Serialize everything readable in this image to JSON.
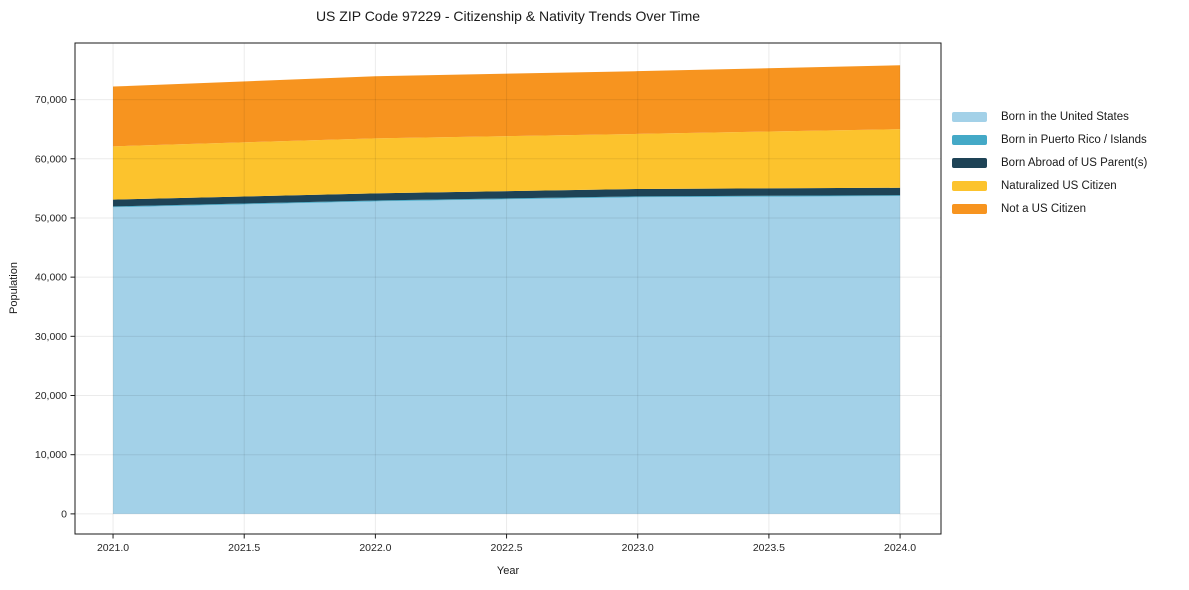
{
  "chart_data": {
    "type": "area",
    "stacked": true,
    "title": "US ZIP Code 97229 - Citizenship & Nativity Trends Over Time",
    "xlabel": "Year",
    "ylabel": "Population",
    "x": [
      2021,
      2022,
      2023,
      2024
    ],
    "series": [
      {
        "name": "Born in the United States",
        "color": "#a3d1e8",
        "values": [
          51800,
          52800,
          53500,
          53700
        ]
      },
      {
        "name": "Born in Puerto Rico / Islands",
        "color": "#44a9c7",
        "values": [
          150,
          150,
          150,
          150
        ]
      },
      {
        "name": "Born Abroad of US Parent(s)",
        "color": "#1e4356",
        "values": [
          1150,
          1200,
          1250,
          1250
        ]
      },
      {
        "name": "Naturalized US Citizen",
        "color": "#fcc32d",
        "values": [
          9000,
          9300,
          9300,
          9900
        ]
      },
      {
        "name": "Not a US Citizen",
        "color": "#f7941f",
        "values": [
          10100,
          10500,
          10600,
          10800
        ]
      }
    ],
    "totals": [
      72200,
      73950,
      74800,
      75800
    ],
    "xticks": {
      "values": [
        2021.0,
        2021.5,
        2022.0,
        2022.5,
        2023.0,
        2023.5,
        2024.0
      ],
      "labels": [
        "2021.0",
        "2021.5",
        "2022.0",
        "2022.5",
        "2023.0",
        "2023.5",
        "2024.0"
      ]
    },
    "yticks": {
      "values": [
        0,
        10000,
        20000,
        30000,
        40000,
        50000,
        60000,
        70000
      ],
      "labels": [
        "0",
        "10,000",
        "20,000",
        "30,000",
        "40,000",
        "50,000",
        "60,000",
        "70,000"
      ]
    },
    "xlim": [
      2020.855,
      2024.156
    ],
    "ylim": [
      -3400,
      79560
    ],
    "grid": true,
    "legend_position": "right",
    "frame_color": "#1a1a1a",
    "grid_color_rgba": "rgba(0,0,0,0.08)"
  }
}
